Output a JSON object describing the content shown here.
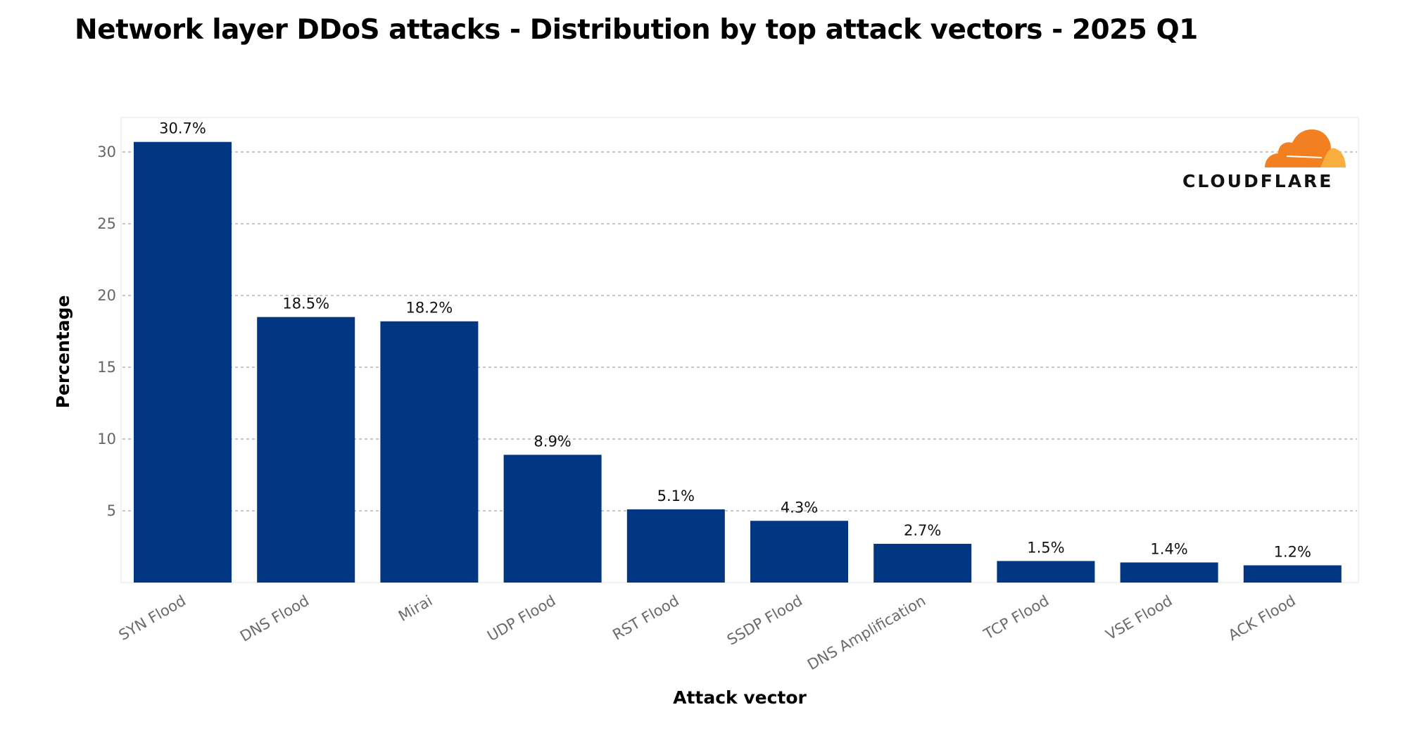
{
  "chart_data": {
    "type": "bar",
    "title": "Network layer DDoS attacks - Distribution by top attack vectors - 2025 Q1",
    "xlabel": "Attack vector",
    "ylabel": "Percentage",
    "categories": [
      "SYN Flood",
      "DNS Flood",
      "Mirai",
      "UDP Flood",
      "RST Flood",
      "SSDP Flood",
      "DNS Amplification",
      "TCP Flood",
      "VSE Flood",
      "ACK Flood"
    ],
    "values": [
      30.7,
      18.5,
      18.2,
      8.9,
      5.1,
      4.3,
      2.7,
      1.5,
      1.4,
      1.2
    ],
    "data_labels": [
      "30.7%",
      "18.5%",
      "18.2%",
      "8.9%",
      "5.1%",
      "4.3%",
      "2.7%",
      "1.5%",
      "1.4%",
      "1.2%"
    ],
    "yticks": [
      5,
      10,
      15,
      20,
      25,
      30
    ],
    "ylim": [
      0,
      32
    ],
    "grid": "horizontal dotted",
    "bar_color": "#003682",
    "legend": "none"
  },
  "logo": {
    "text": "CLOUDFLARE",
    "orange": "#F38020",
    "light_orange": "#FBAE40"
  }
}
